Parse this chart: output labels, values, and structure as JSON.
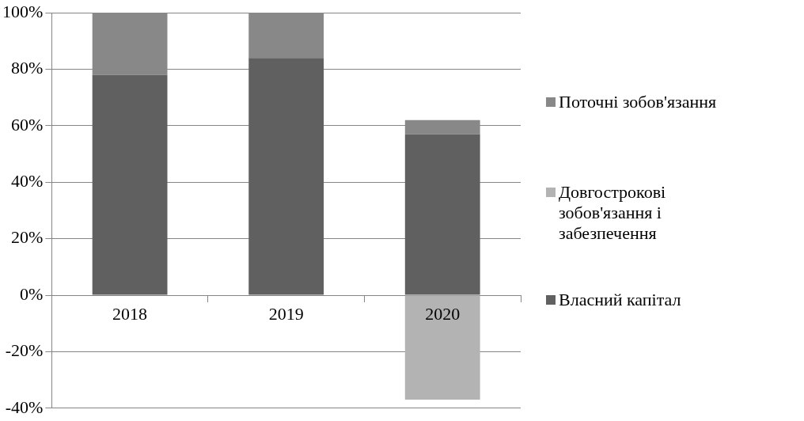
{
  "chart_data": {
    "type": "bar",
    "stacked": true,
    "categories": [
      "2018",
      "2019",
      "2020"
    ],
    "series": [
      {
        "name": "Власний капітал",
        "color": "#606060",
        "values": [
          78,
          84,
          57
        ]
      },
      {
        "name": "Довгострокові зобов'язання і забезпечення",
        "color": "#b3b3b3",
        "values": [
          null,
          null,
          -37
        ]
      },
      {
        "name": "Поточні зобов'язання",
        "color": "#888888",
        "values": [
          22,
          16,
          5
        ]
      }
    ],
    "ylim": [
      -40,
      100
    ],
    "yticks": [
      {
        "value": -40,
        "label": "-40%"
      },
      {
        "value": -20,
        "label": "-20%"
      },
      {
        "value": 0,
        "label": "0%"
      },
      {
        "value": 20,
        "label": "20%"
      },
      {
        "value": 40,
        "label": "40%"
      },
      {
        "value": 60,
        "label": "60%"
      },
      {
        "value": 80,
        "label": "80%"
      },
      {
        "value": 100,
        "label": "100%"
      }
    ],
    "grid": "y",
    "legend": "right"
  }
}
